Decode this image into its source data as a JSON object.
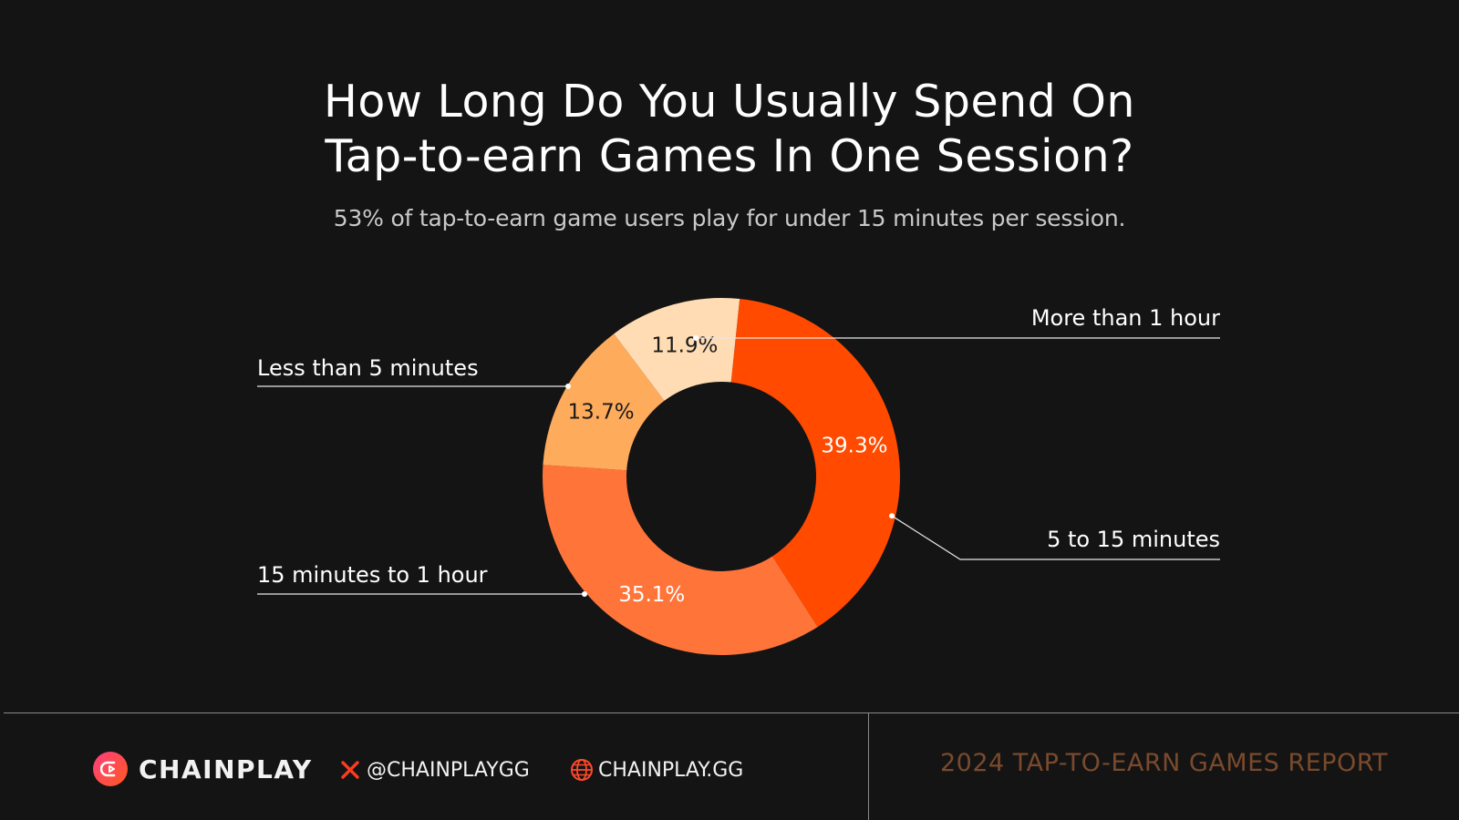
{
  "header": {
    "title_line1": "How Long Do You Usually Spend On",
    "title_line2": "Tap-to-earn Games In One Session?",
    "subtitle": "53% of tap-to-earn game users play for under 15 minutes per session."
  },
  "chart_data": {
    "type": "pie",
    "style": "donut",
    "legend": "none (callout labels)",
    "slices": [
      {
        "label": "5 to 15 minutes",
        "value": 39.3,
        "value_label": "39.3%",
        "color": "#ff4a00",
        "label_color": "#ffffff"
      },
      {
        "label": "15 minutes to 1 hour",
        "value": 35.1,
        "value_label": "35.1%",
        "color": "#ff7439",
        "label_color": "#ffffff"
      },
      {
        "label": "Less than 5 minutes",
        "value": 13.7,
        "value_label": "13.7%",
        "color": "#ffab5c",
        "label_color": "#1a1a1a"
      },
      {
        "label": "More than 1 hour",
        "value": 11.9,
        "value_label": "11.9%",
        "color": "#ffdcb3",
        "label_color": "#1a1a1a"
      }
    ]
  },
  "footer": {
    "brand": "CHAINPLAY",
    "twitter_handle": "@CHAINPLAYGG",
    "website": "CHAINPLAY.GG",
    "report_title": "2024 TAP-TO-EARN GAMES REPORT"
  },
  "colors": {
    "background": "#141414",
    "accent": "#ff4a00",
    "report_text": "#7a4a2c"
  },
  "icons": {
    "brand": "chainplay-logo-icon",
    "twitter": "x-icon",
    "website": "globe-icon"
  }
}
